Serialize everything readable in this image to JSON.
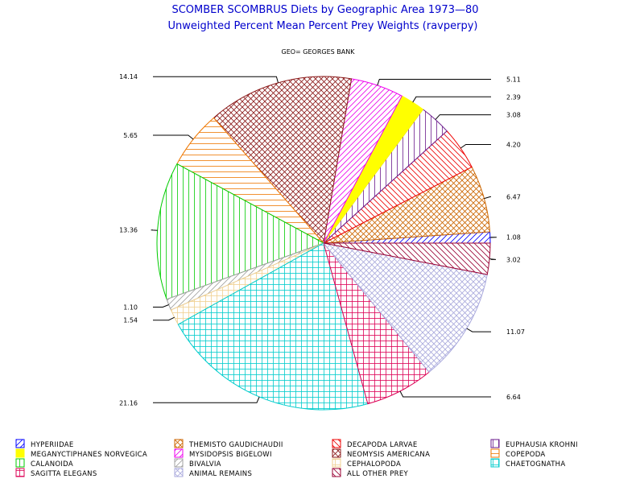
{
  "chart_data": {
    "type": "pie",
    "title": "SCOMBER SCOMBRUS Diets by Geographic Area 1973—80",
    "subtitle": "Unweighted Percent Mean Percent Prey  Weights (ravperpy)",
    "panel_label": "GEO= GEORGES BANK",
    "slices": [
      {
        "name": "HYPERIIDAE",
        "value": 1.08,
        "label": "1.08",
        "color": "#0000ff",
        "pattern": "diag-up"
      },
      {
        "name": "THEMISTO GAUDICHAUDII",
        "value": 6.47,
        "label": "6.47",
        "color": "#cc6600",
        "pattern": "crosshatch"
      },
      {
        "name": "DECAPODA LARVAE",
        "value": 4.2,
        "label": "4.20",
        "color": "#ee0000",
        "pattern": "diag-down"
      },
      {
        "name": "EUPHAUSIA KROHNI",
        "value": 3.08,
        "label": "3.08",
        "color": "#6a1a8c",
        "pattern": "vertical"
      },
      {
        "name": "MEGANYCTIPHANES NORVEGICA",
        "value": 2.39,
        "label": "2.39",
        "color": "#ffff00",
        "pattern": "solid"
      },
      {
        "name": "MYSIDOPSIS BIGELOWI",
        "value": 5.11,
        "label": "5.11",
        "color": "#ee00ee",
        "pattern": "diag-up"
      },
      {
        "name": "NEOMYSIS AMERICANA",
        "value": 14.14,
        "label": "14.14",
        "color": "#8b1a1a",
        "pattern": "crosshatch"
      },
      {
        "name": "COPEPODA",
        "value": 5.65,
        "label": "5.65",
        "color": "#ee7700",
        "pattern": "horizontal"
      },
      {
        "name": "CALANOIDA",
        "value": 13.36,
        "label": "13.36",
        "color": "#00cc00",
        "pattern": "vertical"
      },
      {
        "name": "BIVALVIA",
        "value": 1.1,
        "label": "1.10",
        "color": "#a0a0a0",
        "pattern": "diag-up"
      },
      {
        "name": "CEPHALOPODA",
        "value": 1.54,
        "label": "1.54",
        "color": "#f0d090",
        "pattern": "grid"
      },
      {
        "name": "CHAETOGNATHA",
        "value": 21.16,
        "label": "21.16",
        "color": "#00cccc",
        "pattern": "grid"
      },
      {
        "name": "SAGITTA ELEGANS",
        "value": 6.64,
        "label": "6.64",
        "color": "#dd0055",
        "pattern": "grid"
      },
      {
        "name": "ANIMAL REMAINS",
        "value": 11.07,
        "label": "11.07",
        "color": "#aaaadd",
        "pattern": "crosshatch"
      },
      {
        "name": "ALL OTHER PREY",
        "value": 3.02,
        "label": "3.02",
        "color": "#990033",
        "pattern": "diag-down"
      }
    ],
    "legend_order": [
      "HYPERIIDAE",
      "THEMISTO GAUDICHAUDII",
      "DECAPODA LARVAE",
      "EUPHAUSIA KROHNI",
      "MEGANYCTIPHANES NORVEGICA",
      "MYSIDOPSIS BIGELOWI",
      "NEOMYSIS AMERICANA",
      "COPEPODA",
      "CALANOIDA",
      "BIVALVIA",
      "CEPHALOPODA",
      "CHAETOGNATHA",
      "SAGITTA ELEGANS",
      "ANIMAL REMAINS",
      "ALL OTHER PREY"
    ],
    "legend_placement": "bottom",
    "direction": "counterclockwise from 3 o'clock"
  }
}
